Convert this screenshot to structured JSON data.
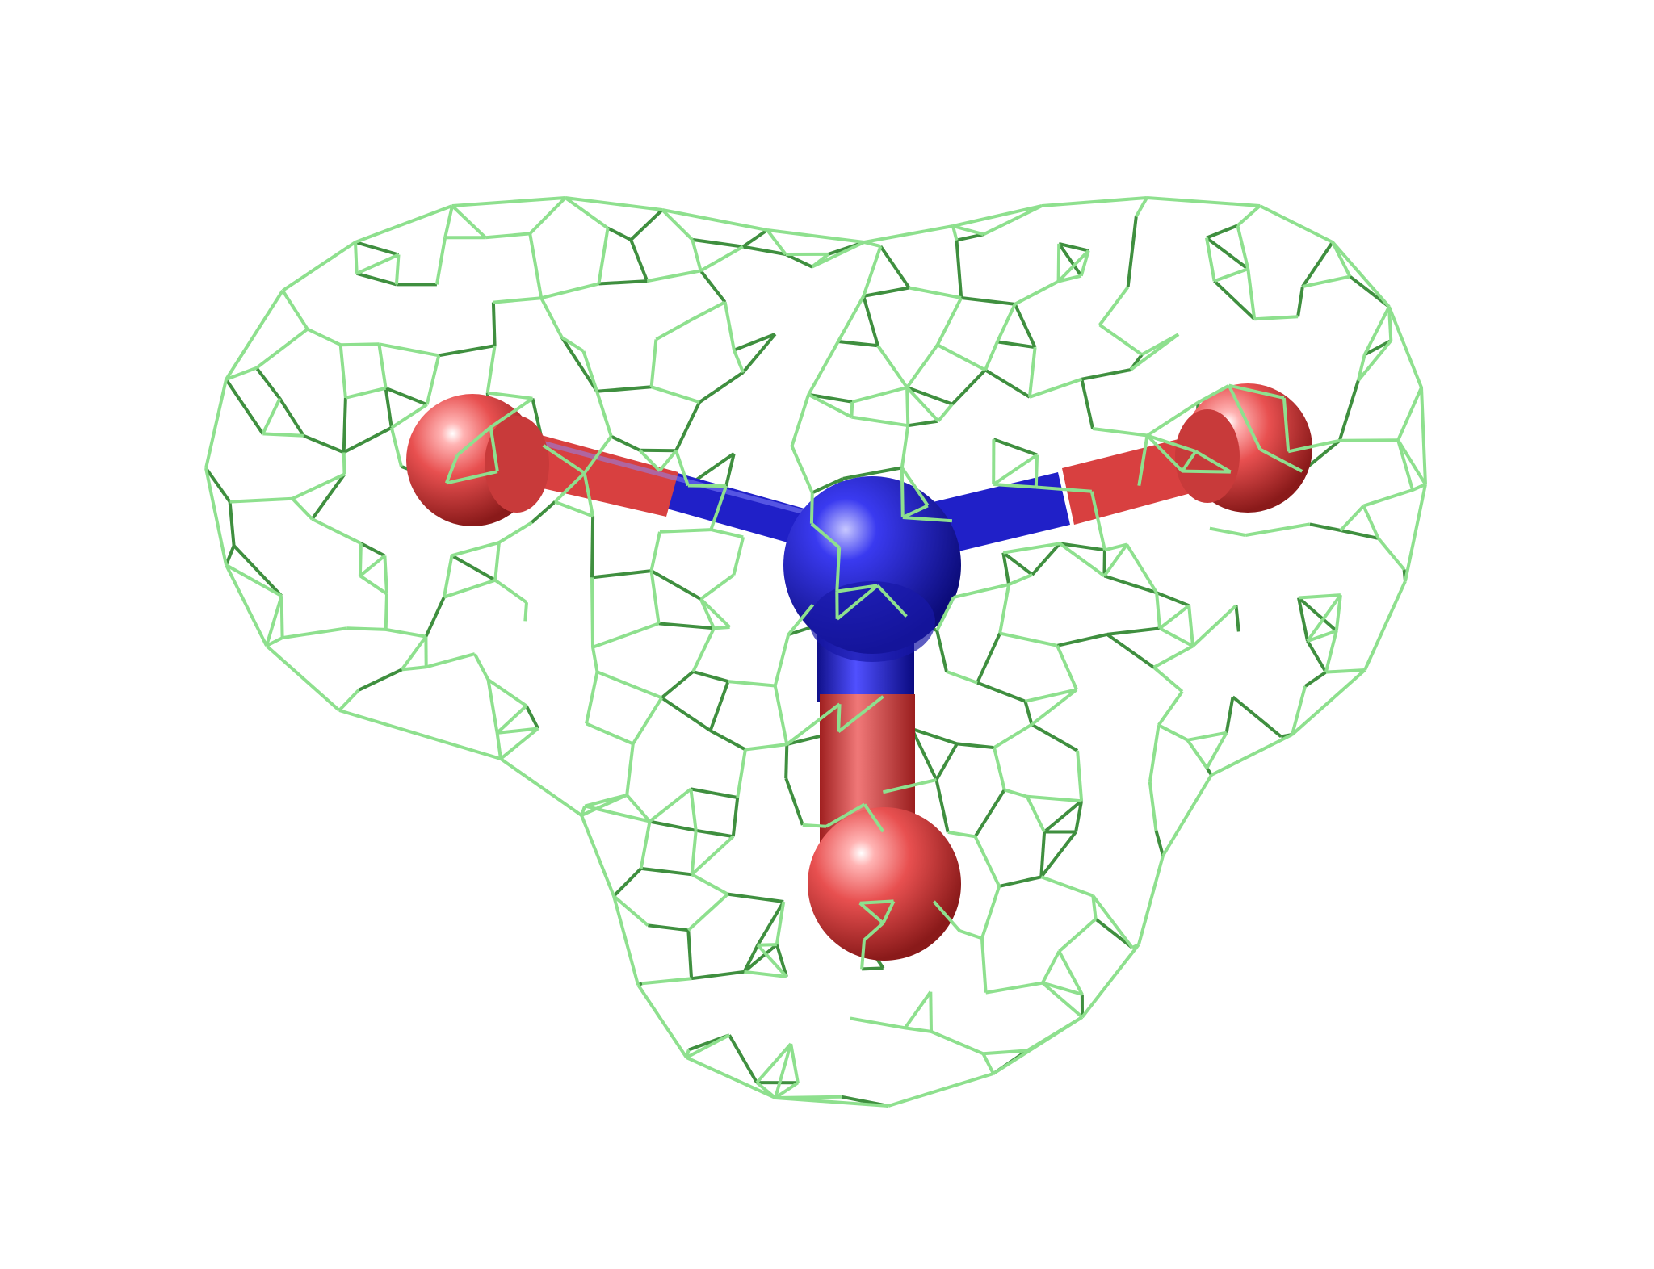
{
  "scene": {
    "subject": "molecule-with-electron-density-mesh",
    "atoms": [
      {
        "id": "n-center",
        "element": "N"
      },
      {
        "id": "o-left",
        "element": "O"
      },
      {
        "id": "o-right",
        "element": "O"
      },
      {
        "id": "o-bottom",
        "element": "O"
      }
    ],
    "bonds": [
      {
        "from": "n-center",
        "to": "o-left"
      },
      {
        "from": "n-center",
        "to": "o-right"
      },
      {
        "from": "n-center",
        "to": "o-bottom"
      }
    ],
    "colors": {
      "background": "#ffffff",
      "nitrogen": "#2a2ad6",
      "oxygen": "#e24646",
      "mesh": "#8ee08e",
      "mesh_dark": "#3f8f3f"
    }
  }
}
